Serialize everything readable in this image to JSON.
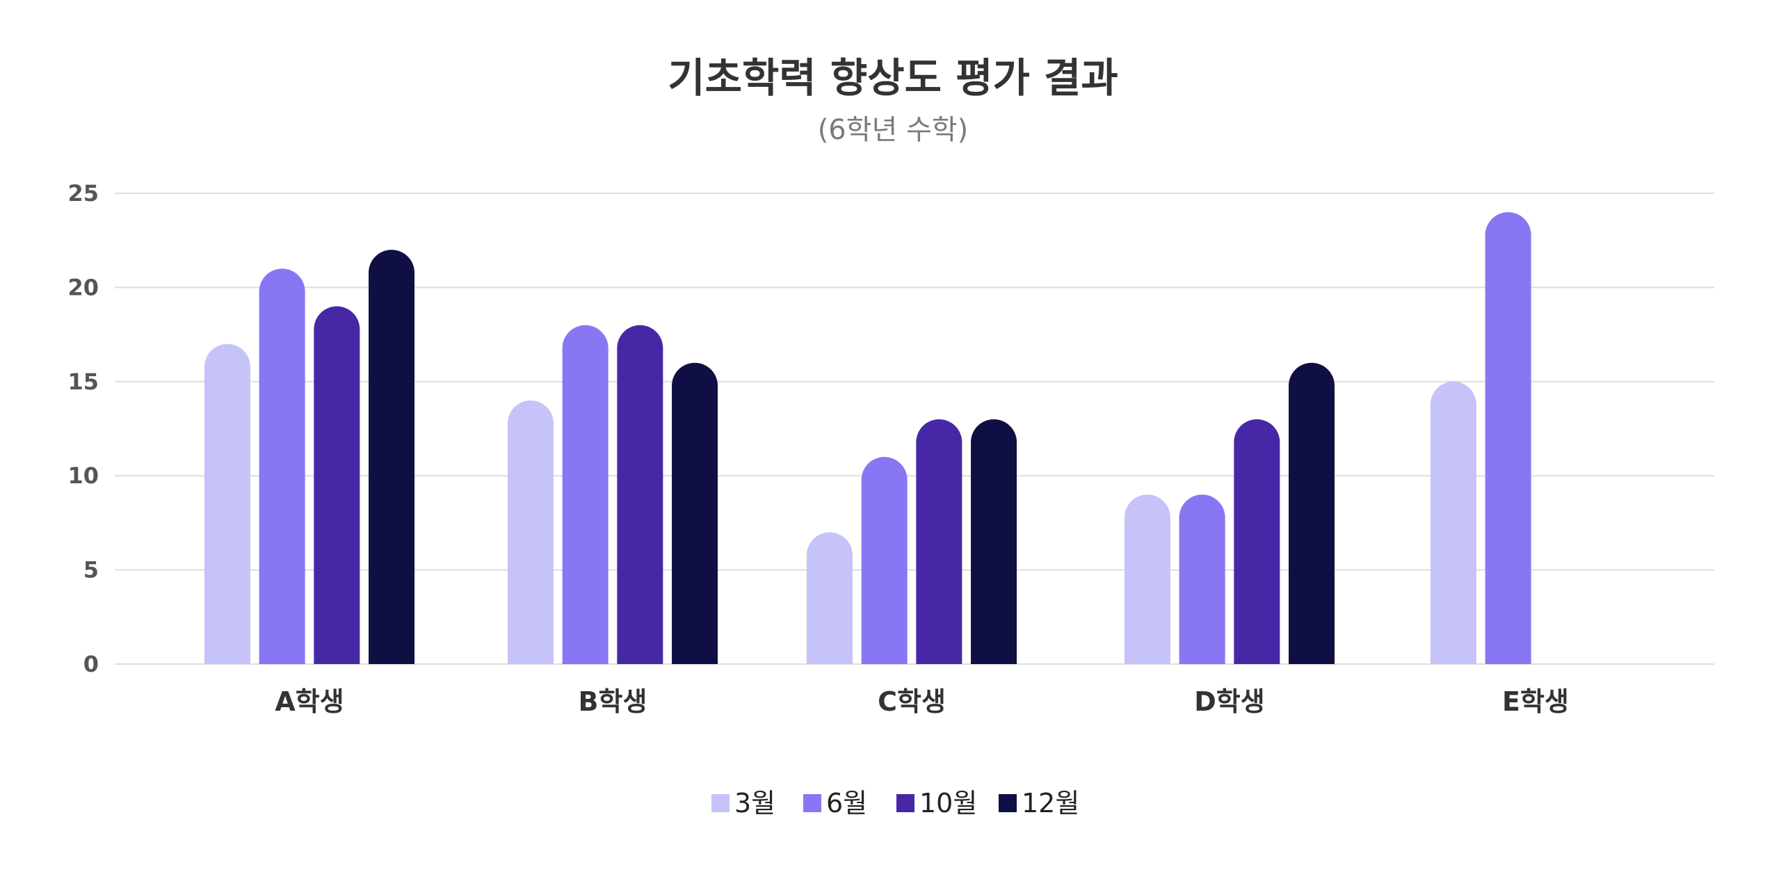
{
  "chart_data": {
    "type": "bar",
    "title": "기초학력 향상도 평가 결과",
    "subtitle": "(6학년 수학)",
    "xlabel": "",
    "ylabel": "",
    "ylim": [
      0,
      25
    ],
    "yticks": [
      "0",
      "5",
      "10",
      "15",
      "20",
      "25"
    ],
    "grid": true,
    "legend_position": "bottom-center",
    "categories": [
      "A학생",
      "B학생",
      "C학생",
      "D학생",
      "E학생"
    ],
    "series": [
      {
        "name": "3월",
        "color": "#c5c3f8",
        "values": [
          17,
          14,
          7,
          9,
          15
        ]
      },
      {
        "name": "6월",
        "color": "#8877f3",
        "values": [
          21,
          18,
          11,
          9,
          24
        ]
      },
      {
        "name": "10월",
        "color": "#4628a6",
        "values": [
          19,
          18,
          13,
          13,
          null
        ]
      },
      {
        "name": "12월",
        "color": "#100f43",
        "values": [
          22,
          16,
          13,
          16,
          null
        ]
      }
    ]
  }
}
